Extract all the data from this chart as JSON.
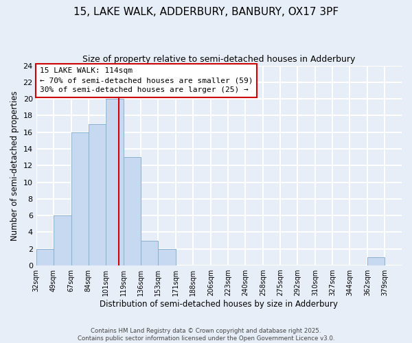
{
  "title": "15, LAKE WALK, ADDERBURY, BANBURY, OX17 3PF",
  "subtitle": "Size of property relative to semi-detached houses in Adderbury",
  "xlabel": "Distribution of semi-detached houses by size in Adderbury",
  "ylabel": "Number of semi-detached properties",
  "bin_labels": [
    "32sqm",
    "49sqm",
    "67sqm",
    "84sqm",
    "101sqm",
    "119sqm",
    "136sqm",
    "153sqm",
    "171sqm",
    "188sqm",
    "206sqm",
    "223sqm",
    "240sqm",
    "258sqm",
    "275sqm",
    "292sqm",
    "310sqm",
    "327sqm",
    "344sqm",
    "362sqm",
    "379sqm"
  ],
  "bin_edges": [
    32,
    49,
    67,
    84,
    101,
    119,
    136,
    153,
    171,
    188,
    206,
    223,
    240,
    258,
    275,
    292,
    310,
    327,
    344,
    362,
    379
  ],
  "bar_heights": [
    2,
    6,
    16,
    17,
    20,
    13,
    3,
    2,
    0,
    0,
    0,
    0,
    0,
    0,
    0,
    0,
    0,
    0,
    0,
    1,
    0
  ],
  "bar_color": "#c6d9f0",
  "bar_edge_color": "#8ab0d0",
  "vline_x": 114,
  "vline_color": "#cc0000",
  "annotation_line1": "15 LAKE WALK: 114sqm",
  "annotation_line2": "← 70% of semi-detached houses are smaller (59)",
  "annotation_line3": "30% of semi-detached houses are larger (25) →",
  "ylim": [
    0,
    24
  ],
  "yticks": [
    0,
    2,
    4,
    6,
    8,
    10,
    12,
    14,
    16,
    18,
    20,
    22,
    24
  ],
  "footer_text": "Contains HM Land Registry data © Crown copyright and database right 2025.\nContains public sector information licensed under the Open Government Licence v3.0.",
  "background_color": "#e8eef8",
  "plot_bg_color": "#e8eef8",
  "grid_color": "#ffffff",
  "title_fontsize": 11,
  "subtitle_fontsize": 9
}
